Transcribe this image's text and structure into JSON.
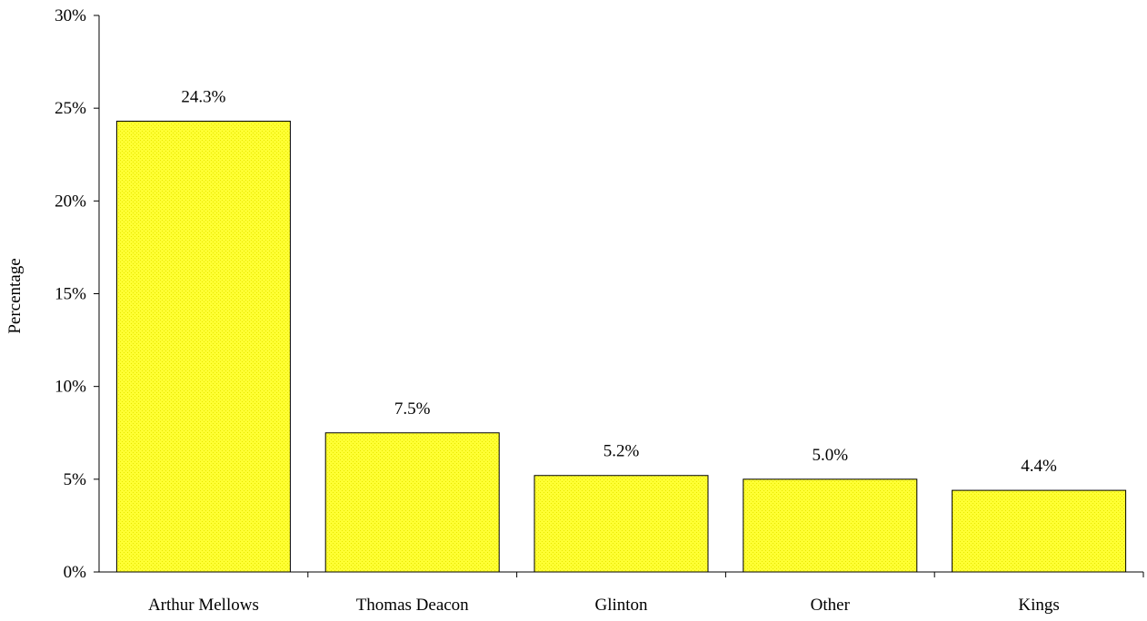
{
  "chart_data": {
    "type": "bar",
    "categories": [
      "Arthur Mellows",
      "Thomas Deacon",
      "Glinton",
      "Other",
      "Kings"
    ],
    "values": [
      24.3,
      7.5,
      5.2,
      5.0,
      4.4
    ],
    "data_labels": [
      "24.3%",
      "7.5%",
      "5.2%",
      "5.0%",
      "4.4%"
    ],
    "ylabel": "Percentage",
    "xlabel": "",
    "ylim": [
      0,
      30
    ],
    "yticks": [
      0,
      5,
      10,
      15,
      20,
      25,
      30
    ],
    "ytick_labels": [
      "0%",
      "5%",
      "10%",
      "15%",
      "20%",
      "25%",
      "30%"
    ],
    "grid": false,
    "legend": "none",
    "colors": {
      "bar_fill": "#ffff33",
      "bar_pattern": "#e6e600",
      "bar_stroke": "#000000",
      "axis": "#000000"
    }
  }
}
